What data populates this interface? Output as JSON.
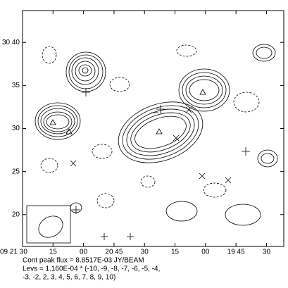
{
  "chart_data": {
    "type": "contour",
    "xlim": [
      150,
      21.5
    ],
    "ylim": [
      16.3,
      43.7
    ],
    "xticks": [
      {
        "value": 150,
        "label": "09 21 30"
      },
      {
        "value": 135,
        "label": "15"
      },
      {
        "value": 120,
        "label": "00"
      },
      {
        "value": 105,
        "label": "20 45"
      },
      {
        "value": 90,
        "label": "30"
      },
      {
        "value": 75,
        "label": "15"
      },
      {
        "value": 60,
        "label": "00"
      },
      {
        "value": 45,
        "label": "19 45"
      },
      {
        "value": 30,
        "label": "30"
      }
    ],
    "yticks": [
      {
        "value": 40,
        "label": "30 40"
      },
      35,
      30,
      25,
      20
    ],
    "footer": [
      "Cont peak flux =  8.8517E-03 JY/BEAM",
      "Levs = 1.160E-04 * (-10, -9, -8, -7, -6, -5, -4,",
      "-3, -2, 2, 3, 4, 5, 6, 7, 8, 9, 10)"
    ]
  }
}
